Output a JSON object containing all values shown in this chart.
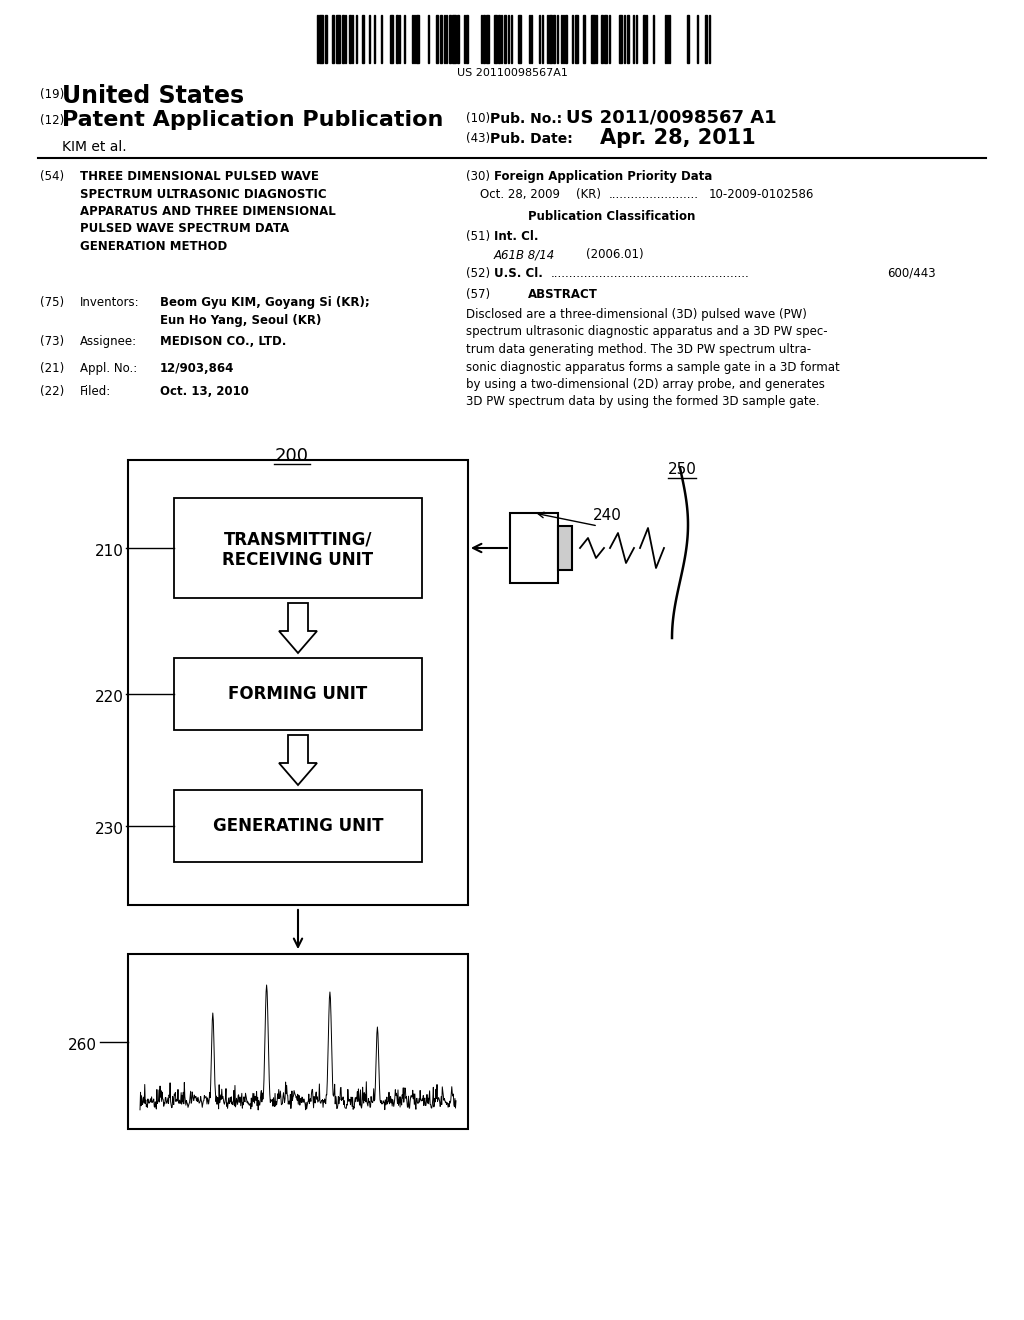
{
  "background_color": "#ffffff",
  "barcode_text": "US 20110098567A1",
  "header": {
    "country_num": "(19)",
    "country": "United States",
    "pub_type_num": "(12)",
    "pub_type": "Patent Application Publication",
    "pub_no_num": "(10)",
    "pub_no_label": "Pub. No.:",
    "pub_no": "US 2011/0098567 A1",
    "inventors_line": "KIM et al.",
    "pub_date_num": "(43)",
    "pub_date_label": "Pub. Date:",
    "pub_date": "Apr. 28, 2011"
  },
  "left_col": {
    "title_num": "(54)",
    "title": "THREE DIMENSIONAL PULSED WAVE\nSPECTRUM ULTRASONIC DIAGNOSTIC\nAPPARATUS AND THREE DIMENSIONAL\nPULSED WAVE SPECTRUM DATA\nGENERATION METHOD",
    "inventors_num": "(75)",
    "inventors_label": "Inventors:",
    "inventors_bold": "Beom Gyu KIM",
    "inventors_rest": ", Goyang Si (KR);\nEun Ho Yang, Seoul (KR)",
    "assignee_num": "(73)",
    "assignee_label": "Assignee:",
    "assignee": "MEDISON CO., LTD.",
    "appl_num": "(21)",
    "appl_label": "Appl. No.:",
    "appl": "12/903,864",
    "filed_num": "(22)",
    "filed_label": "Filed:",
    "filed": "Oct. 13, 2010"
  },
  "right_col": {
    "foreign_num": "(30)",
    "foreign_label": "Foreign Application Priority Data",
    "foreign_entry": "Oct. 28, 2009    (KR) ........................ 10-2009-0102586",
    "pub_class_label": "Publication Classification",
    "int_cl_num": "(51)",
    "int_cl_label": "Int. Cl.",
    "int_cl_class": "A61B 8/14",
    "int_cl_year": "(2006.01)",
    "us_cl_num": "(52)",
    "us_cl_label": "U.S. Cl.",
    "us_cl_line": "U.S. Cl. ..................................................... 600/443",
    "abstract_num": "(57)",
    "abstract_label": "ABSTRACT",
    "abstract_text": "Disclosed are a three-dimensional (3D) pulsed wave (PW)\nspectrum ultrasonic diagnostic apparatus and a 3D PW spec-\ntrum data generating method. The 3D PW spectrum ultra-\nsonic diagnostic apparatus forms a sample gate in a 3D format\nby using a two-dimensional (2D) array probe, and generates\n3D PW spectrum data by using the formed 3D sample gate."
  },
  "diagram": {
    "label_200": "200",
    "label_250": "250",
    "label_240": "240",
    "label_210": "210",
    "label_220": "220",
    "label_230": "230",
    "label_260": "260",
    "box_transmitting_line1": "TRANSMITTING/",
    "box_transmitting_line2": "RECEIVING UNIT",
    "box_forming": "FORMING UNIT",
    "box_generating": "GENERATING UNIT"
  }
}
